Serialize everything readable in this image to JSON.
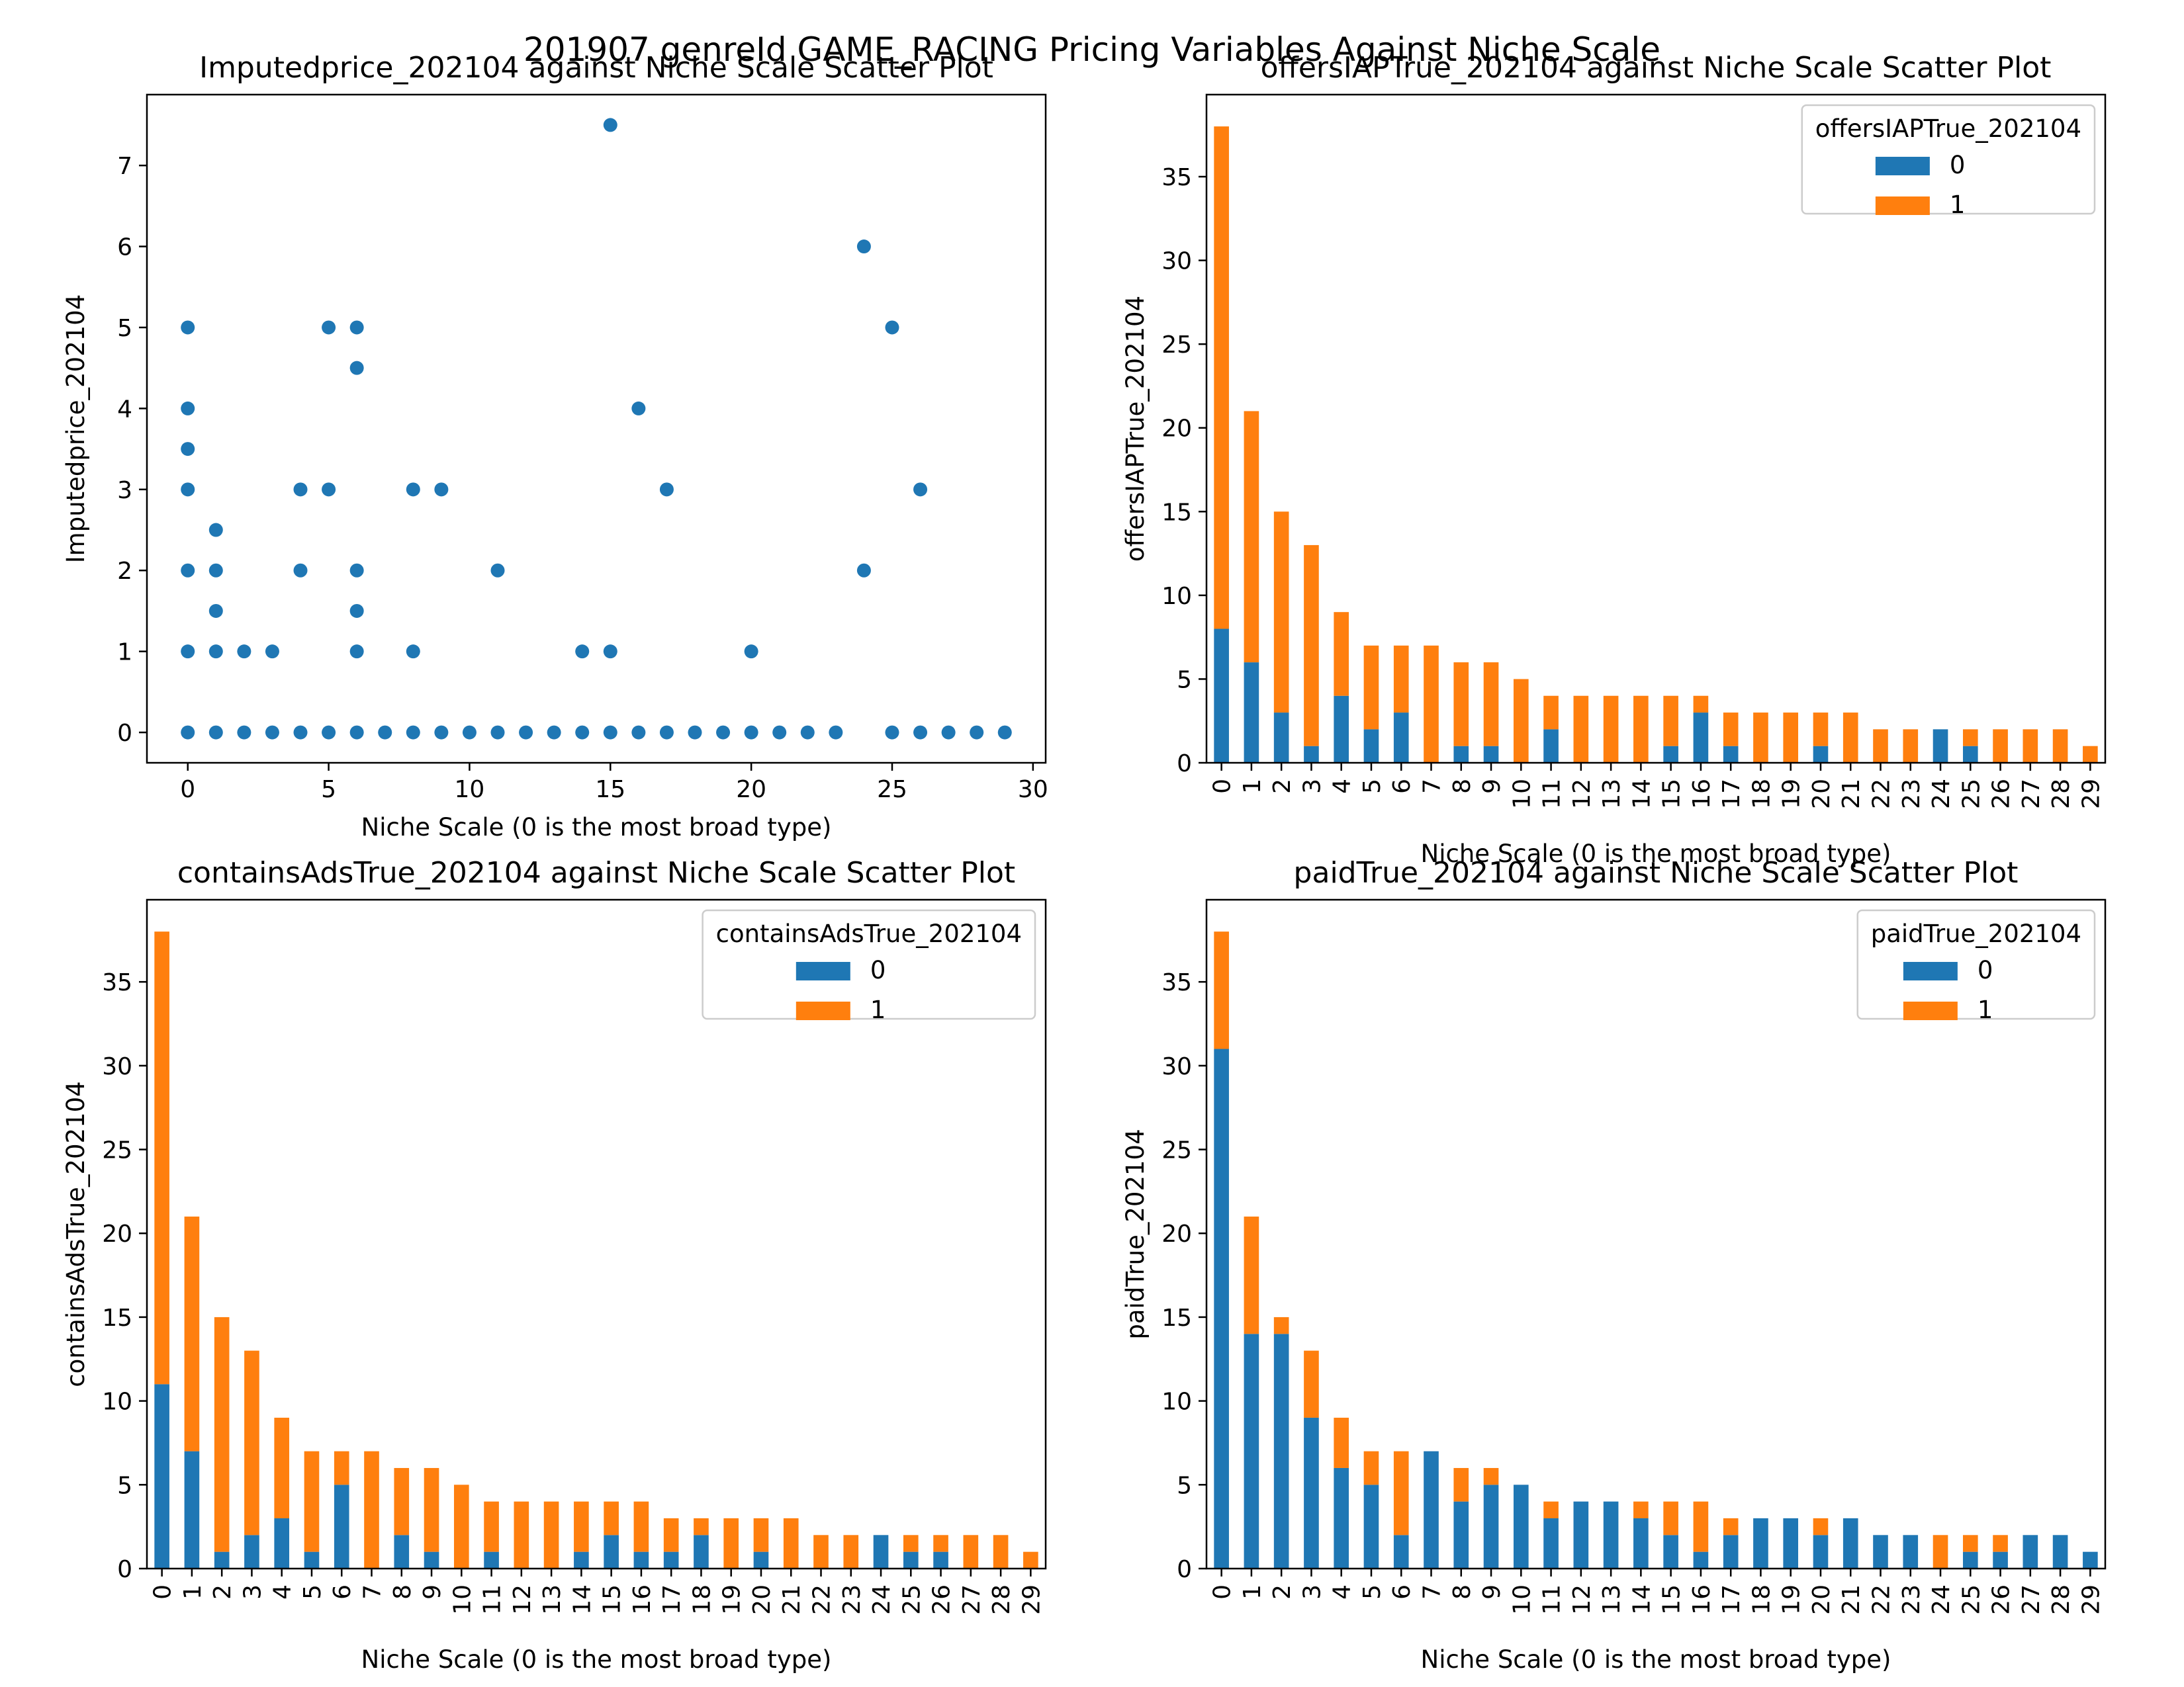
{
  "figure": {
    "suptitle": "201907 genreId GAME_RACING Pricing Variables Against Niche Scale"
  },
  "colors": {
    "series_0": "#1f77b4",
    "series_1": "#ff7f0e"
  },
  "chart_data": [
    {
      "type": "scatter",
      "title": "Imputedprice_202104 against Niche Scale Scatter Plot",
      "xlabel": "Niche Scale (0 is the most broad type)",
      "ylabel": "Imputedprice_202104",
      "xlim": [
        -1.45,
        30.45
      ],
      "ylim": [
        -0.375,
        7.875
      ],
      "xticks": [
        0,
        5,
        10,
        15,
        20,
        25,
        30
      ],
      "yticks": [
        0,
        1,
        2,
        3,
        4,
        5,
        6,
        7
      ],
      "grid": false,
      "points": [
        [
          0,
          0
        ],
        [
          0,
          1
        ],
        [
          0,
          2
        ],
        [
          0,
          3
        ],
        [
          0,
          3.5
        ],
        [
          0,
          4
        ],
        [
          0,
          5
        ],
        [
          1,
          0
        ],
        [
          1,
          1
        ],
        [
          1,
          1.5
        ],
        [
          1,
          2
        ],
        [
          1,
          2.5
        ],
        [
          2,
          0
        ],
        [
          2,
          1
        ],
        [
          3,
          0
        ],
        [
          3,
          1
        ],
        [
          4,
          0
        ],
        [
          4,
          2
        ],
        [
          4,
          3
        ],
        [
          5,
          0
        ],
        [
          5,
          3
        ],
        [
          5,
          5
        ],
        [
          6,
          0
        ],
        [
          6,
          1
        ],
        [
          6,
          1.5
        ],
        [
          6,
          2
        ],
        [
          6,
          4.5
        ],
        [
          6,
          5
        ],
        [
          7,
          0
        ],
        [
          8,
          0
        ],
        [
          8,
          1
        ],
        [
          8,
          3
        ],
        [
          9,
          0
        ],
        [
          9,
          3
        ],
        [
          10,
          0
        ],
        [
          11,
          0
        ],
        [
          11,
          2
        ],
        [
          12,
          0
        ],
        [
          13,
          0
        ],
        [
          14,
          0
        ],
        [
          14,
          1
        ],
        [
          15,
          0
        ],
        [
          15,
          1
        ],
        [
          15,
          7.5
        ],
        [
          16,
          0
        ],
        [
          16,
          4
        ],
        [
          17,
          0
        ],
        [
          17,
          3
        ],
        [
          18,
          0
        ],
        [
          19,
          0
        ],
        [
          20,
          0
        ],
        [
          20,
          1
        ],
        [
          21,
          0
        ],
        [
          22,
          0
        ],
        [
          23,
          0
        ],
        [
          24,
          2
        ],
        [
          24,
          6
        ],
        [
          25,
          0
        ],
        [
          25,
          5
        ],
        [
          26,
          0
        ],
        [
          26,
          3
        ],
        [
          27,
          0
        ],
        [
          28,
          0
        ],
        [
          29,
          0
        ]
      ]
    },
    {
      "type": "bar",
      "stacked": true,
      "title": "offersIAPTrue_202104 against Niche Scale Scatter Plot",
      "xlabel": "Niche Scale (0 is the most broad type)",
      "ylabel": "offersIAPTrue_202104",
      "ylim": [
        0,
        39.9
      ],
      "yticks": [
        0,
        5,
        10,
        15,
        20,
        25,
        30,
        35
      ],
      "grid": false,
      "legend": {
        "title": "offersIAPTrue_202104",
        "position": "upper right"
      },
      "categories": [
        "0",
        "1",
        "2",
        "3",
        "4",
        "5",
        "6",
        "7",
        "8",
        "9",
        "10",
        "11",
        "12",
        "13",
        "14",
        "15",
        "16",
        "17",
        "18",
        "19",
        "20",
        "21",
        "22",
        "23",
        "24",
        "25",
        "26",
        "27",
        "28",
        "29"
      ],
      "series": [
        {
          "name": "0",
          "values": [
            8,
            6,
            3,
            1,
            4,
            2,
            3,
            0,
            1,
            1,
            0,
            2,
            0,
            0,
            0,
            1,
            3,
            1,
            0,
            0,
            1,
            0,
            0,
            0,
            2,
            1,
            0,
            0,
            0,
            0
          ]
        },
        {
          "name": "1",
          "values": [
            30,
            15,
            12,
            12,
            5,
            5,
            4,
            7,
            5,
            5,
            5,
            2,
            4,
            4,
            4,
            3,
            1,
            2,
            3,
            3,
            2,
            3,
            2,
            2,
            0,
            1,
            2,
            2,
            2,
            1
          ]
        }
      ]
    },
    {
      "type": "bar",
      "stacked": true,
      "title": "containsAdsTrue_202104 against Niche Scale Scatter Plot",
      "xlabel": "Niche Scale (0 is the most broad type)",
      "ylabel": "containsAdsTrue_202104",
      "ylim": [
        0,
        39.9
      ],
      "yticks": [
        0,
        5,
        10,
        15,
        20,
        25,
        30,
        35
      ],
      "grid": false,
      "legend": {
        "title": "containsAdsTrue_202104",
        "position": "upper right"
      },
      "categories": [
        "0",
        "1",
        "2",
        "3",
        "4",
        "5",
        "6",
        "7",
        "8",
        "9",
        "10",
        "11",
        "12",
        "13",
        "14",
        "15",
        "16",
        "17",
        "18",
        "19",
        "20",
        "21",
        "22",
        "23",
        "24",
        "25",
        "26",
        "27",
        "28",
        "29"
      ],
      "series": [
        {
          "name": "0",
          "values": [
            11,
            7,
            1,
            2,
            3,
            1,
            5,
            0,
            2,
            1,
            0,
            1,
            0,
            0,
            1,
            2,
            1,
            1,
            2,
            0,
            1,
            0,
            0,
            0,
            2,
            1,
            1,
            0,
            0,
            0
          ]
        },
        {
          "name": "1",
          "values": [
            27,
            14,
            14,
            11,
            6,
            6,
            2,
            7,
            4,
            5,
            5,
            3,
            4,
            4,
            3,
            2,
            3,
            2,
            1,
            3,
            2,
            3,
            2,
            2,
            0,
            1,
            1,
            2,
            2,
            1
          ]
        }
      ]
    },
    {
      "type": "bar",
      "stacked": true,
      "title": "paidTrue_202104 against Niche Scale Scatter Plot",
      "xlabel": "Niche Scale (0 is the most broad type)",
      "ylabel": "paidTrue_202104",
      "ylim": [
        0,
        39.9
      ],
      "yticks": [
        0,
        5,
        10,
        15,
        20,
        25,
        30,
        35
      ],
      "grid": false,
      "legend": {
        "title": "paidTrue_202104",
        "position": "upper right"
      },
      "categories": [
        "0",
        "1",
        "2",
        "3",
        "4",
        "5",
        "6",
        "7",
        "8",
        "9",
        "10",
        "11",
        "12",
        "13",
        "14",
        "15",
        "16",
        "17",
        "18",
        "19",
        "20",
        "21",
        "22",
        "23",
        "24",
        "25",
        "26",
        "27",
        "28",
        "29"
      ],
      "series": [
        {
          "name": "0",
          "values": [
            31,
            14,
            14,
            9,
            6,
            5,
            2,
            7,
            4,
            5,
            5,
            3,
            4,
            4,
            3,
            2,
            1,
            2,
            3,
            3,
            2,
            3,
            2,
            2,
            0,
            1,
            1,
            2,
            2,
            1
          ]
        },
        {
          "name": "1",
          "values": [
            7,
            7,
            1,
            4,
            3,
            2,
            5,
            0,
            2,
            1,
            0,
            1,
            0,
            0,
            1,
            2,
            3,
            1,
            0,
            0,
            1,
            0,
            0,
            0,
            2,
            1,
            1,
            0,
            0,
            0
          ]
        }
      ]
    }
  ]
}
